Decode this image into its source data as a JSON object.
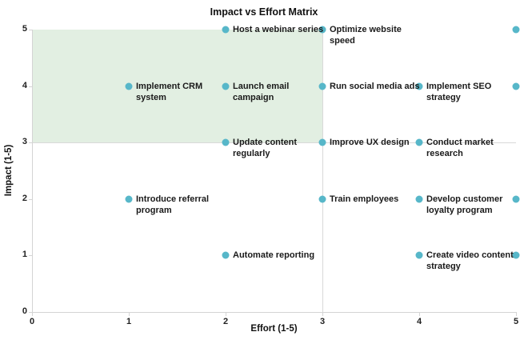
{
  "chart_data": {
    "type": "scatter",
    "title": "Impact vs Effort Matrix",
    "xlabel": "Effort (1-5)",
    "ylabel": "Impact (1-5)",
    "xlim": [
      0,
      5
    ],
    "ylim": [
      0,
      5
    ],
    "xticks": [
      "0",
      "1",
      "2",
      "3",
      "4",
      "5"
    ],
    "yticks": [
      "0",
      "1",
      "2",
      "3",
      "4",
      "5"
    ],
    "grid": false,
    "legend": false,
    "point_color": "#57b7c9",
    "label_color": "#1a1a1a",
    "axis_color": "#d4d4d4",
    "divider_color": "#d9d9d9",
    "quadrant_highlight": {
      "x_range": [
        0,
        3
      ],
      "y_range": [
        3,
        5
      ],
      "color": "#e2efe2"
    },
    "points": [
      {
        "label": "Host a webinar series",
        "effort": 2,
        "impact": 5
      },
      {
        "label": "Optimize website\nspeed",
        "effort": 3,
        "impact": 5
      },
      {
        "label": "",
        "effort": 5,
        "impact": 5
      },
      {
        "label": "Implement CRM\nsystem",
        "effort": 1,
        "impact": 4
      },
      {
        "label": "Launch email\ncampaign",
        "effort": 2,
        "impact": 4
      },
      {
        "label": "Run social media ads",
        "effort": 3,
        "impact": 4
      },
      {
        "label": "Implement SEO\nstrategy",
        "effort": 4,
        "impact": 4
      },
      {
        "label": "",
        "effort": 5,
        "impact": 4
      },
      {
        "label": "Update content\nregularly",
        "effort": 2,
        "impact": 3
      },
      {
        "label": "Improve UX design",
        "effort": 3,
        "impact": 3
      },
      {
        "label": "Conduct market\nresearch",
        "effort": 4,
        "impact": 3
      },
      {
        "label": "Introduce referral\nprogram",
        "effort": 1,
        "impact": 2
      },
      {
        "label": "Train employees",
        "effort": 3,
        "impact": 2
      },
      {
        "label": "Develop customer\nloyalty program",
        "effort": 4,
        "impact": 2
      },
      {
        "label": "",
        "effort": 5,
        "impact": 2
      },
      {
        "label": "Automate reporting",
        "effort": 2,
        "impact": 1
      },
      {
        "label": "Create video content\nstrategy",
        "effort": 4,
        "impact": 1
      },
      {
        "label": "",
        "effort": 5,
        "impact": 1
      }
    ]
  }
}
